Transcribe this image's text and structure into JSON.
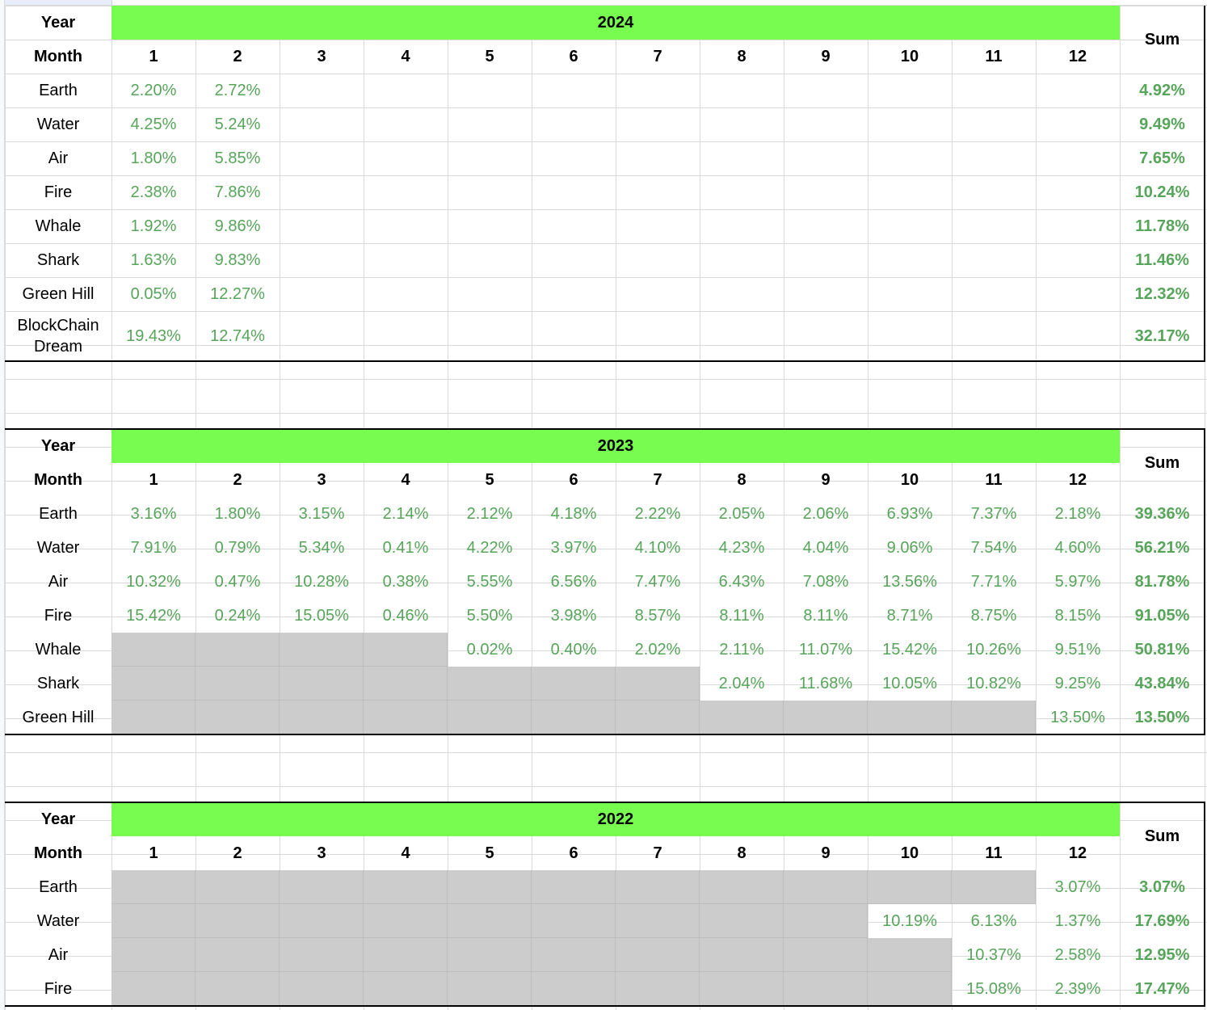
{
  "labels": {
    "year": "Year",
    "month": "Month",
    "sum": "Sum"
  },
  "months": [
    "1",
    "2",
    "3",
    "4",
    "5",
    "6",
    "7",
    "8",
    "9",
    "10",
    "11",
    "12"
  ],
  "colors": {
    "header_green": "#77fc4f",
    "value_green": "#57a55a",
    "empty_gray": "#cccccc"
  },
  "blocks": [
    {
      "year": "2024",
      "rows": [
        {
          "name": "Earth",
          "values": [
            "2.20%",
            "2.72%",
            "",
            "",
            "",
            "",
            "",
            "",
            "",
            "",
            "",
            ""
          ],
          "sum": "4.92%"
        },
        {
          "name": "Water",
          "values": [
            "4.25%",
            "5.24%",
            "",
            "",
            "",
            "",
            "",
            "",
            "",
            "",
            "",
            ""
          ],
          "sum": "9.49%"
        },
        {
          "name": "Air",
          "values": [
            "1.80%",
            "5.85%",
            "",
            "",
            "",
            "",
            "",
            "",
            "",
            "",
            "",
            ""
          ],
          "sum": "7.65%"
        },
        {
          "name": "Fire",
          "values": [
            "2.38%",
            "7.86%",
            "",
            "",
            "",
            "",
            "",
            "",
            "",
            "",
            "",
            ""
          ],
          "sum": "10.24%"
        },
        {
          "name": "Whale",
          "values": [
            "1.92%",
            "9.86%",
            "",
            "",
            "",
            "",
            "",
            "",
            "",
            "",
            "",
            ""
          ],
          "sum": "11.78%"
        },
        {
          "name": "Shark",
          "values": [
            "1.63%",
            "9.83%",
            "",
            "",
            "",
            "",
            "",
            "",
            "",
            "",
            "",
            ""
          ],
          "sum": "11.46%"
        },
        {
          "name": "Green Hill",
          "values": [
            "0.05%",
            "12.27%",
            "",
            "",
            "",
            "",
            "",
            "",
            "",
            "",
            "",
            ""
          ],
          "sum": "12.32%"
        },
        {
          "name": "BlockChain Dream",
          "values": [
            "19.43%",
            "12.74%",
            "",
            "",
            "",
            "",
            "",
            "",
            "",
            "",
            "",
            ""
          ],
          "sum": "32.17%"
        }
      ]
    },
    {
      "year": "2023",
      "rows": [
        {
          "name": "Earth",
          "values": [
            "3.16%",
            "1.80%",
            "3.15%",
            "2.14%",
            "2.12%",
            "4.18%",
            "2.22%",
            "2.05%",
            "2.06%",
            "6.93%",
            "7.37%",
            "2.18%"
          ],
          "sum": "39.36%"
        },
        {
          "name": "Water",
          "values": [
            "7.91%",
            "0.79%",
            "5.34%",
            "0.41%",
            "4.22%",
            "3.97%",
            "4.10%",
            "4.23%",
            "4.04%",
            "9.06%",
            "7.54%",
            "4.60%"
          ],
          "sum": "56.21%"
        },
        {
          "name": "Air",
          "values": [
            "10.32%",
            "0.47%",
            "10.28%",
            "0.38%",
            "5.55%",
            "6.56%",
            "7.47%",
            "6.43%",
            "7.08%",
            "13.56%",
            "7.71%",
            "5.97%"
          ],
          "sum": "81.78%"
        },
        {
          "name": "Fire",
          "values": [
            "15.42%",
            "0.24%",
            "15.05%",
            "0.46%",
            "5.50%",
            "3.98%",
            "8.57%",
            "8.11%",
            "8.11%",
            "8.71%",
            "8.75%",
            "8.15%"
          ],
          "sum": "91.05%"
        },
        {
          "name": "Whale",
          "values": [
            null,
            null,
            null,
            null,
            "0.02%",
            "0.40%",
            "2.02%",
            "2.11%",
            "11.07%",
            "15.42%",
            "10.26%",
            "9.51%"
          ],
          "sum": "50.81%"
        },
        {
          "name": "Shark",
          "values": [
            null,
            null,
            null,
            null,
            null,
            null,
            null,
            "2.04%",
            "11.68%",
            "10.05%",
            "10.82%",
            "9.25%"
          ],
          "sum": "43.84%"
        },
        {
          "name": "Green Hill",
          "values": [
            null,
            null,
            null,
            null,
            null,
            null,
            null,
            null,
            null,
            null,
            null,
            "13.50%"
          ],
          "sum": "13.50%"
        }
      ]
    },
    {
      "year": "2022",
      "rows": [
        {
          "name": "Earth",
          "values": [
            null,
            null,
            null,
            null,
            null,
            null,
            null,
            null,
            null,
            null,
            null,
            "3.07%"
          ],
          "sum": "3.07%"
        },
        {
          "name": "Water",
          "values": [
            null,
            null,
            null,
            null,
            null,
            null,
            null,
            null,
            null,
            "10.19%",
            "6.13%",
            "1.37%"
          ],
          "sum": "17.69%"
        },
        {
          "name": "Air",
          "values": [
            null,
            null,
            null,
            null,
            null,
            null,
            null,
            null,
            null,
            null,
            "10.37%",
            "2.58%"
          ],
          "sum": "12.95%"
        },
        {
          "name": "Fire",
          "values": [
            null,
            null,
            null,
            null,
            null,
            null,
            null,
            null,
            null,
            null,
            "15.08%",
            "2.39%"
          ],
          "sum": "17.47%"
        }
      ]
    }
  ]
}
